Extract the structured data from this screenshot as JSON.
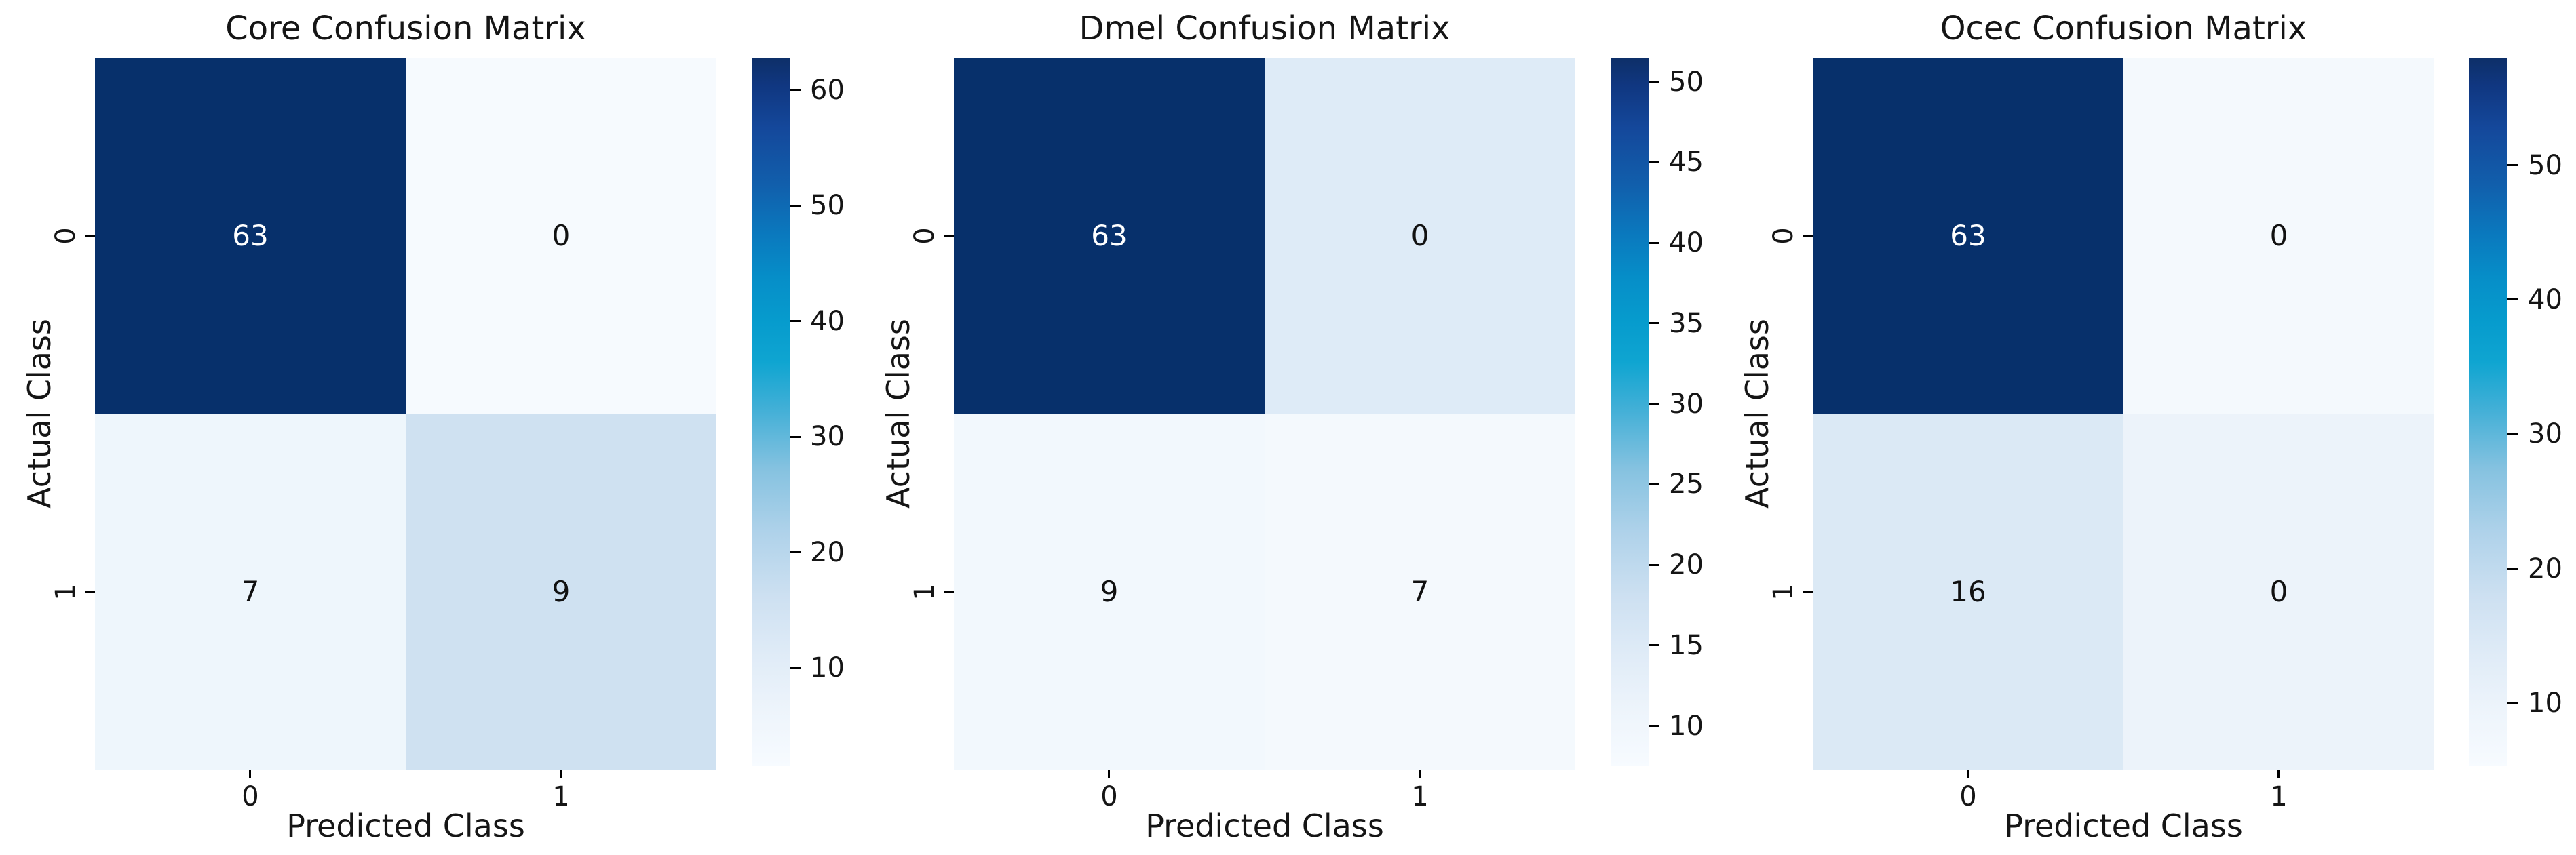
{
  "page": {
    "background": "#ffffff"
  },
  "colormap": {
    "name": "blues-navy-cyan-white",
    "stops": [
      [
        0,
        "#f7fbff"
      ],
      [
        0.08,
        "#edf4fb"
      ],
      [
        0.16,
        "#dfebf7"
      ],
      [
        0.24,
        "#cde0f1"
      ],
      [
        0.33,
        "#afd2ea"
      ],
      [
        0.42,
        "#85c2e0"
      ],
      [
        0.5,
        "#45b0d7"
      ],
      [
        0.57,
        "#0fa5d1"
      ],
      [
        0.63,
        "#069bcd"
      ],
      [
        0.69,
        "#068ec8"
      ],
      [
        0.75,
        "#0a79be"
      ],
      [
        0.82,
        "#115fac"
      ],
      [
        0.9,
        "#14489b"
      ],
      [
        0.96,
        "#103781"
      ],
      [
        1,
        "#0d2f68"
      ]
    ]
  },
  "chart_data": [
    {
      "type": "heatmap",
      "title": "Core Confusion Matrix",
      "xlabel": "Predicted Class",
      "ylabel": "Actual Class",
      "x_ticklabels": [
        "0",
        "1"
      ],
      "y_ticklabels": [
        "0",
        "1"
      ],
      "values": [
        [
          63,
          0
        ],
        [
          7,
          9
        ]
      ],
      "cell_colors": [
        [
          "#07306b",
          "#f6fafe"
        ],
        [
          "#eef6fc",
          "#cfe1f1"
        ]
      ],
      "cell_text_colors": [
        [
          "#ffffff",
          "#111111"
        ],
        [
          "#111111",
          "#111111"
        ]
      ],
      "colorbar": {
        "ticks": [
          10,
          20,
          30,
          40,
          50,
          60
        ],
        "vmin": 1.5,
        "vmax": 62.8
      }
    },
    {
      "type": "heatmap",
      "title": "Dmel Confusion Matrix",
      "xlabel": "Predicted Class",
      "ylabel": "Actual Class",
      "x_ticklabels": [
        "0",
        "1"
      ],
      "y_ticklabels": [
        "0",
        "1"
      ],
      "values": [
        [
          63,
          0
        ],
        [
          9,
          7
        ]
      ],
      "cell_colors": [
        [
          "#07306b",
          "#deebf7"
        ],
        [
          "#f2f8fd",
          "#f4f9fd"
        ]
      ],
      "cell_text_colors": [
        [
          "#ffffff",
          "#111111"
        ],
        [
          "#111111",
          "#111111"
        ]
      ],
      "colorbar": {
        "ticks": [
          10,
          15,
          20,
          25,
          30,
          35,
          40,
          45,
          50
        ],
        "vmin": 7.5,
        "vmax": 51.5
      }
    },
    {
      "type": "heatmap",
      "title": "Ocec Confusion Matrix",
      "xlabel": "Predicted Class",
      "ylabel": "Actual Class",
      "x_ticklabels": [
        "0",
        "1"
      ],
      "y_ticklabels": [
        "0",
        "1"
      ],
      "values": [
        [
          63,
          0
        ],
        [
          16,
          0
        ]
      ],
      "cell_colors": [
        [
          "#07306b",
          "#f4f9fd"
        ],
        [
          "#dbe9f5",
          "#ecf3fa"
        ]
      ],
      "cell_text_colors": [
        [
          "#ffffff",
          "#111111"
        ],
        [
          "#111111",
          "#111111"
        ]
      ],
      "colorbar": {
        "ticks": [
          10,
          20,
          30,
          40,
          50
        ],
        "vmin": 5.3,
        "vmax": 58.0
      }
    }
  ]
}
